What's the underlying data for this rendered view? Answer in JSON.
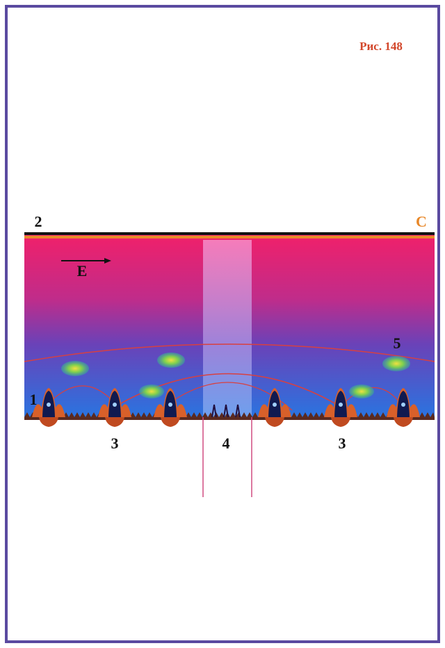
{
  "caption": "Рис. 148",
  "labels": [
    "2",
    "C",
    "E",
    "1",
    "5",
    "3",
    "4",
    "3"
  ]
}
